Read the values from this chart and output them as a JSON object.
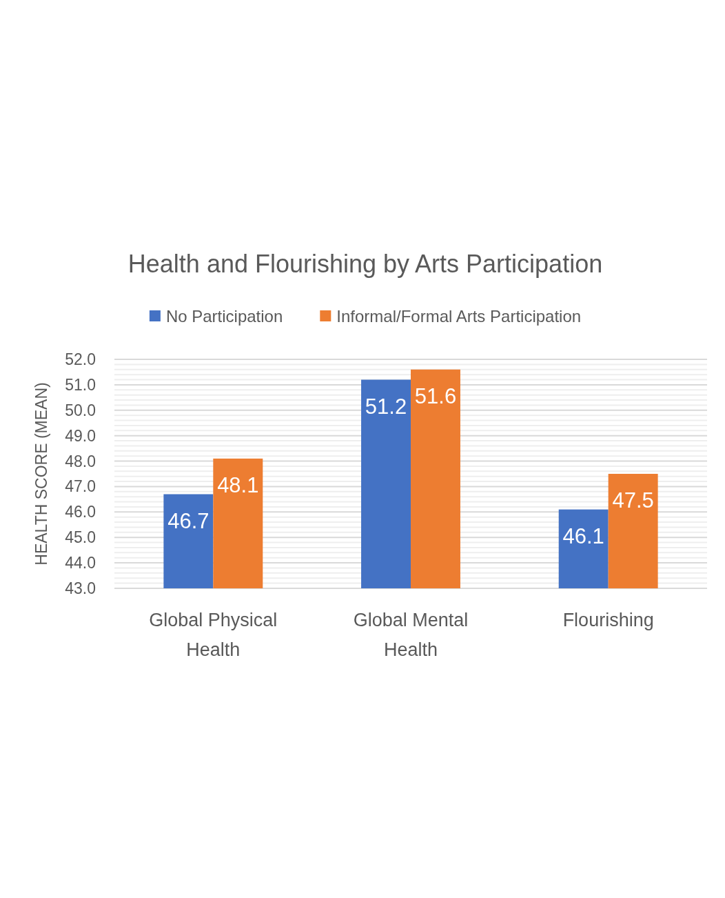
{
  "chart_data": {
    "type": "bar",
    "title": "Health and Flourishing by Arts Participation",
    "ylabel": "HEALTH SCORE (MEAN)",
    "categories": [
      "Global Physical Health",
      "Global Mental Health",
      "Flourishing"
    ],
    "series": [
      {
        "name": "No Participation",
        "color": "#4472c4",
        "values": [
          46.7,
          51.2,
          46.1
        ]
      },
      {
        "name": "Informal/Formal Arts Participation",
        "color": "#ed7d31",
        "values": [
          48.1,
          51.6,
          47.5
        ]
      }
    ],
    "ylim": [
      43,
      52
    ],
    "yticks": [
      {
        "value": 43,
        "label": "43.0"
      },
      {
        "value": 43.2,
        "label": null
      },
      {
        "value": 43.4,
        "label": null
      },
      {
        "value": 43.6,
        "label": null
      },
      {
        "value": 43.8,
        "label": null
      },
      {
        "value": 44,
        "label": "44.0"
      },
      {
        "value": 44.2,
        "label": null
      },
      {
        "value": 44.4,
        "label": null
      },
      {
        "value": 44.6,
        "label": null
      },
      {
        "value": 44.8,
        "label": null
      },
      {
        "value": 45,
        "label": "45.0"
      },
      {
        "value": 45.2,
        "label": null
      },
      {
        "value": 45.4,
        "label": null
      },
      {
        "value": 45.6,
        "label": null
      },
      {
        "value": 45.8,
        "label": null
      },
      {
        "value": 46,
        "label": "46.0"
      },
      {
        "value": 46.2,
        "label": null
      },
      {
        "value": 46.4,
        "label": null
      },
      {
        "value": 46.6,
        "label": null
      },
      {
        "value": 46.8,
        "label": null
      },
      {
        "value": 47,
        "label": "47.0"
      },
      {
        "value": 47.2,
        "label": null
      },
      {
        "value": 47.4,
        "label": null
      },
      {
        "value": 47.6,
        "label": null
      },
      {
        "value": 47.8,
        "label": null
      },
      {
        "value": 48,
        "label": "48.0"
      },
      {
        "value": 48.2,
        "label": null
      },
      {
        "value": 48.4,
        "label": null
      },
      {
        "value": 48.6,
        "label": null
      },
      {
        "value": 48.8,
        "label": null
      },
      {
        "value": 49,
        "label": "49.0"
      },
      {
        "value": 49.2,
        "label": null
      },
      {
        "value": 49.4,
        "label": null
      },
      {
        "value": 49.6,
        "label": null
      },
      {
        "value": 49.8,
        "label": null
      },
      {
        "value": 50,
        "label": "50.0"
      },
      {
        "value": 50.2,
        "label": null
      },
      {
        "value": 50.4,
        "label": null
      },
      {
        "value": 50.6,
        "label": null
      },
      {
        "value": 50.8,
        "label": null
      },
      {
        "value": 51,
        "label": "51.0"
      },
      {
        "value": 51.2,
        "label": null
      },
      {
        "value": 51.4,
        "label": null
      },
      {
        "value": 51.6,
        "label": null
      },
      {
        "value": 51.8,
        "label": null
      },
      {
        "value": 52,
        "label": "52.0"
      }
    ],
    "grid": "y",
    "legend": "top",
    "data_labels": true
  }
}
